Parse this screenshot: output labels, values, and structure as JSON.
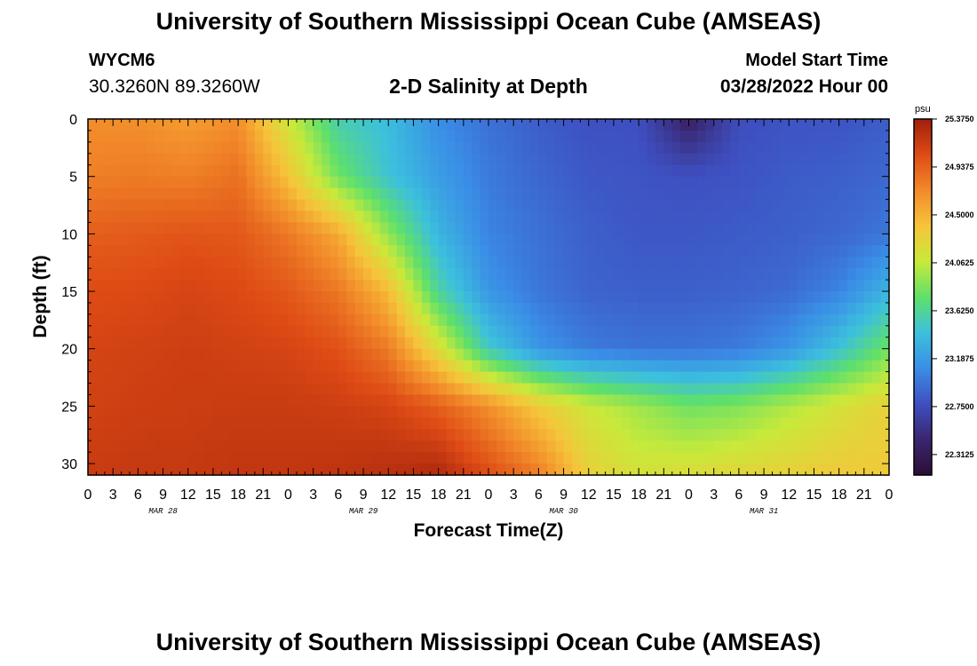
{
  "header": {
    "title": "University of Southern Mississippi Ocean Cube (AMSEAS)",
    "station_id": "WYCM6",
    "station_coords": "30.3260N  89.3260W",
    "plot_title": "2-D Salinity at Depth",
    "start_label": "Model Start Time",
    "start_value": "03/28/2022 Hour 00"
  },
  "footer": {
    "title": "University of Southern Mississippi Ocean Cube (AMSEAS)"
  },
  "chart_data": {
    "type": "heatmap",
    "xlabel": "Forecast Time(Z)",
    "ylabel": "Depth (ft)",
    "x_tick_labels": [
      "0",
      "3",
      "6",
      "9",
      "12",
      "15",
      "18",
      "21",
      "0",
      "3",
      "6",
      "9",
      "12",
      "15",
      "18",
      "21",
      "0",
      "3",
      "6",
      "9",
      "12",
      "15",
      "18",
      "21",
      "0",
      "3",
      "6",
      "9",
      "12",
      "15",
      "18",
      "21",
      "0"
    ],
    "date_labels": [
      "MAR 28",
      "MAR 29",
      "MAR 30",
      "MAR 31"
    ],
    "y_ticks": [
      0,
      5,
      10,
      15,
      20,
      25,
      30
    ],
    "ylim": [
      0,
      31
    ],
    "y_inverted": true,
    "colorbar": {
      "unit": "psu",
      "min": 22.125,
      "max": 25.375,
      "labels": [
        "25.3750",
        "24.9375",
        "24.5000",
        "24.0625",
        "23.6250",
        "23.1875",
        "22.7500",
        "22.3125"
      ],
      "colors": [
        "#2b0e35",
        "#3a2670",
        "#3e4fc0",
        "#3a8ee6",
        "#3cc0dd",
        "#5fe06a",
        "#c9e93a",
        "#f6c43a",
        "#f28a2a",
        "#de4b15",
        "#a01f0c"
      ]
    },
    "time_hours": [
      0,
      6,
      12,
      18,
      24,
      30,
      36,
      42,
      48,
      54,
      60,
      66,
      72,
      78,
      84,
      90,
      96
    ],
    "depth_ft": [
      0,
      5,
      10,
      15,
      20,
      25,
      31
    ],
    "salinity_psu": [
      [
        24.7,
        24.7,
        24.62,
        24.7,
        24.1,
        23.55,
        23.4,
        23.1,
        22.95,
        22.85,
        22.78,
        22.78,
        22.38,
        22.76,
        22.8,
        22.8,
        22.85
      ],
      [
        24.78,
        24.8,
        24.78,
        24.86,
        24.4,
        23.8,
        23.45,
        23.2,
        23.0,
        22.9,
        22.82,
        22.8,
        22.78,
        22.8,
        22.84,
        22.86,
        22.9
      ],
      [
        24.95,
        24.97,
        25.0,
        24.98,
        24.82,
        24.55,
        23.9,
        23.35,
        23.05,
        22.95,
        22.86,
        22.82,
        22.82,
        22.84,
        22.86,
        22.9,
        22.98
      ],
      [
        25.05,
        25.06,
        25.1,
        25.06,
        24.98,
        24.82,
        24.45,
        23.6,
        23.15,
        22.98,
        22.88,
        22.86,
        22.86,
        22.88,
        22.92,
        23.05,
        23.35
      ],
      [
        25.1,
        25.12,
        25.14,
        25.12,
        25.1,
        25.02,
        24.8,
        24.2,
        23.5,
        23.15,
        23.0,
        22.96,
        22.96,
        23.0,
        23.15,
        23.45,
        23.8
      ],
      [
        25.12,
        25.14,
        25.15,
        25.16,
        25.16,
        25.14,
        25.1,
        24.95,
        24.7,
        24.35,
        24.1,
        23.95,
        23.8,
        23.85,
        24.0,
        24.15,
        24.3
      ],
      [
        25.16,
        25.18,
        25.18,
        25.2,
        25.2,
        25.22,
        25.25,
        25.3,
        25.05,
        24.8,
        24.3,
        24.15,
        24.2,
        24.25,
        24.3,
        24.35,
        24.35
      ]
    ]
  }
}
